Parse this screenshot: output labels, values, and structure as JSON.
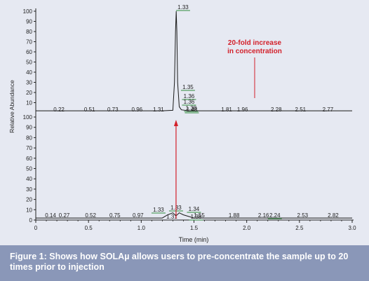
{
  "colors": {
    "background": "#e6e9f2",
    "trace": "#1a1a1a",
    "peak_label_line": "#2e8b3a",
    "annotation": "#d3202a",
    "caption_bg": "#8a97b8"
  },
  "chart_data": {
    "type": "line",
    "xlabel": "Time (min)",
    "ylabel": "Relative Abundance",
    "xlim": [
      0,
      3.0
    ],
    "x_ticks": [
      "0",
      "0.5",
      "1.0",
      "1.5",
      "2.0",
      "2.5",
      "3.0"
    ],
    "upper": {
      "ylim": [
        0,
        100
      ],
      "y_ticks": [
        "10",
        "20",
        "30",
        "40",
        "50",
        "60",
        "70",
        "80",
        "90",
        "100"
      ],
      "series_x": [
        0.0,
        1.2,
        1.3,
        1.315,
        1.325,
        1.332,
        1.338,
        1.345,
        1.36,
        1.38,
        1.45,
        1.6,
        3.0
      ],
      "series_y": [
        2,
        2,
        2.5,
        30,
        80,
        100,
        80,
        30,
        6,
        3,
        2,
        2,
        2
      ],
      "labels": [
        {
          "x": 0.22,
          "text": "0.22"
        },
        {
          "x": 0.51,
          "text": "0.51"
        },
        {
          "x": 0.73,
          "text": "0.73"
        },
        {
          "x": 0.96,
          "text": "0.96"
        },
        {
          "x": 1.31,
          "text": "1.31"
        },
        {
          "x": 1.33,
          "text": "1.33"
        },
        {
          "x": 1.35,
          "text": "1.35"
        },
        {
          "x": 1.36,
          "text": "1.36"
        },
        {
          "x": 1.36,
          "text": "1.36"
        },
        {
          "x": 1.38,
          "text": "1.38"
        },
        {
          "x": 1.48,
          "text": "1.48"
        },
        {
          "x": 1.81,
          "text": "1.81"
        },
        {
          "x": 1.96,
          "text": "1.96"
        },
        {
          "x": 2.28,
          "text": "2.28"
        },
        {
          "x": 2.51,
          "text": "2.51"
        },
        {
          "x": 2.77,
          "text": "2.77"
        }
      ]
    },
    "lower": {
      "ylim": [
        0,
        100
      ],
      "y_ticks": [
        "0",
        "10",
        "20",
        "30",
        "40",
        "50",
        "60",
        "70",
        "80",
        "90",
        "100"
      ],
      "series_x": [
        0.0,
        1.2,
        1.25,
        1.3,
        1.33,
        1.36,
        1.4,
        1.5,
        3.0
      ],
      "series_y": [
        2,
        2,
        5,
        7,
        4,
        7,
        5,
        2,
        2
      ],
      "labels": [
        {
          "x": 0.14,
          "text": "0.14"
        },
        {
          "x": 0.27,
          "text": "0.27"
        },
        {
          "x": 0.52,
          "text": "0.52"
        },
        {
          "x": 0.75,
          "text": "0.75"
        },
        {
          "x": 0.97,
          "text": "0.97"
        },
        {
          "x": 1.31,
          "text": "1.31"
        },
        {
          "x": 1.33,
          "text": "1.33"
        },
        {
          "x": 1.33,
          "text": "1.33"
        },
        {
          "x": 1.34,
          "text": "1.34"
        },
        {
          "x": 1.36,
          "text": "1.36"
        },
        {
          "x": 1.55,
          "text": "1.55"
        },
        {
          "x": 1.88,
          "text": "1.88"
        },
        {
          "x": 2.16,
          "text": "2.16"
        },
        {
          "x": 2.24,
          "text": "2.24"
        },
        {
          "x": 2.53,
          "text": "2.53"
        },
        {
          "x": 2.82,
          "text": "2.82"
        }
      ]
    },
    "annotation": [
      "20-fold increase",
      "in concentration"
    ]
  },
  "caption": "Figure 1: Shows how SOLAµ allows users to pre-concentrate the sample up to 20 times prior to injection"
}
